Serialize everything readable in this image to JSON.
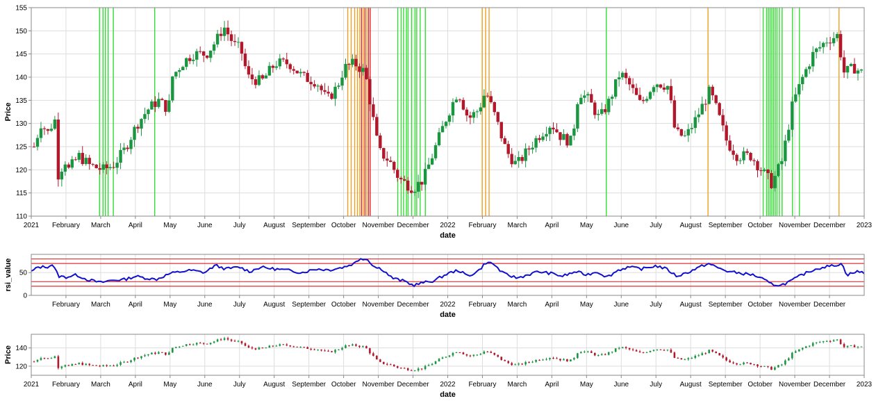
{
  "chart_data": [
    {
      "type": "candlestick",
      "xlabel": "date",
      "ylabel": "Price",
      "x_ticks": [
        "2021",
        "February",
        "March",
        "April",
        "May",
        "June",
        "July",
        "August",
        "September",
        "October",
        "November",
        "December",
        "2022",
        "February",
        "March",
        "April",
        "May",
        "June",
        "July",
        "August",
        "September",
        "October",
        "November",
        "December",
        "2023"
      ],
      "ylim": [
        110,
        155
      ],
      "y_ticks": [
        110,
        115,
        120,
        125,
        130,
        135,
        140,
        145,
        150,
        155
      ],
      "grid": true,
      "colors": {
        "up": "#1a9641",
        "down": "#b2182b",
        "buy_signal": "#33dd33",
        "sell_signal": "#f0a020",
        "sell_signal_strong": "#dd2222"
      },
      "price_path": [
        [
          0,
          125
        ],
        [
          0.2,
          130
        ],
        [
          0.4,
          128
        ],
        [
          0.6,
          131
        ],
        [
          0.7,
          119
        ],
        [
          0.9,
          122
        ],
        [
          1.0,
          120
        ],
        [
          1.3,
          123
        ],
        [
          1.6,
          121
        ],
        [
          2.0,
          120
        ],
        [
          2.3,
          121
        ],
        [
          2.6,
          124
        ],
        [
          3.0,
          130
        ],
        [
          3.3,
          133
        ],
        [
          3.6,
          135
        ],
        [
          3.9,
          133
        ],
        [
          4.0,
          140
        ],
        [
          4.3,
          143
        ],
        [
          4.6,
          145
        ],
        [
          5.0,
          145
        ],
        [
          5.3,
          148
        ],
        [
          5.5,
          151
        ],
        [
          5.8,
          147
        ],
        [
          6.0,
          146
        ],
        [
          6.2,
          140
        ],
        [
          6.6,
          139
        ],
        [
          7.0,
          143
        ],
        [
          7.4,
          143
        ],
        [
          7.8,
          140
        ],
        [
          8.2,
          139
        ],
        [
          8.5,
          135
        ],
        [
          8.8,
          138
        ],
        [
          9.0,
          142
        ],
        [
          9.3,
          143
        ],
        [
          9.6,
          141
        ],
        [
          10.0,
          124
        ],
        [
          10.3,
          122
        ],
        [
          10.6,
          118
        ],
        [
          11.0,
          116
        ],
        [
          11.3,
          118
        ],
        [
          11.6,
          124
        ],
        [
          12.0,
          132
        ],
        [
          12.3,
          137
        ],
        [
          12.6,
          131
        ],
        [
          12.9,
          133
        ],
        [
          13.1,
          137
        ],
        [
          13.4,
          131
        ],
        [
          13.7,
          124
        ],
        [
          14.0,
          121
        ],
        [
          14.3,
          124
        ],
        [
          14.6,
          127
        ],
        [
          15.0,
          130
        ],
        [
          15.3,
          127
        ],
        [
          15.6,
          126
        ],
        [
          15.8,
          137
        ],
        [
          16.1,
          135
        ],
        [
          16.4,
          131
        ],
        [
          16.7,
          135
        ],
        [
          17.0,
          141
        ],
        [
          17.3,
          138
        ],
        [
          17.6,
          134
        ],
        [
          18.0,
          139
        ],
        [
          18.4,
          138
        ],
        [
          18.6,
          128
        ],
        [
          18.9,
          127
        ],
        [
          19.2,
          131
        ],
        [
          19.6,
          137
        ],
        [
          19.8,
          133
        ],
        [
          20.1,
          126
        ],
        [
          20.4,
          123
        ],
        [
          20.8,
          123
        ],
        [
          21.1,
          120
        ],
        [
          21.4,
          117
        ],
        [
          21.7,
          122
        ],
        [
          22.0,
          134
        ],
        [
          22.3,
          140
        ],
        [
          22.6,
          145
        ],
        [
          23.0,
          148
        ],
        [
          23.3,
          149
        ],
        [
          23.5,
          141
        ],
        [
          23.8,
          142
        ],
        [
          24.0,
          141
        ]
      ],
      "signals": [
        {
          "type": "buy",
          "positions": [
            1.9,
            2.0,
            2.07,
            2.15,
            2.3,
            3.5
          ]
        },
        {
          "type": "sell",
          "positions": [
            9.1,
            9.2,
            9.3,
            9.38,
            9.45,
            9.55,
            9.65
          ]
        },
        {
          "type": "sell_strong",
          "positions": [
            9.5,
            9.6,
            9.7,
            9.75
          ]
        },
        {
          "type": "buy",
          "positions": [
            10.55,
            10.65,
            10.72,
            10.8,
            10.85,
            10.95,
            11.05,
            11.1,
            11.2,
            11.35
          ]
        },
        {
          "type": "sell",
          "positions": [
            13.0,
            13.1,
            13.2
          ]
        },
        {
          "type": "buy",
          "positions": [
            16.6
          ]
        },
        {
          "type": "sell",
          "positions": [
            19.55
          ]
        },
        {
          "type": "buy",
          "positions": [
            21.15,
            21.25,
            21.3,
            21.35,
            21.4,
            21.45,
            21.5,
            21.55,
            21.62,
            21.7,
            22.0,
            22.2
          ]
        },
        {
          "type": "sell",
          "positions": [
            23.35
          ]
        }
      ]
    },
    {
      "type": "line",
      "xlabel": "date",
      "ylabel": "rsi_value",
      "x_ticks": [
        "February",
        "March",
        "April",
        "May",
        "June",
        "July",
        "August",
        "September",
        "October",
        "November",
        "December",
        "2022",
        "February",
        "March",
        "April",
        "May",
        "June",
        "July",
        "August",
        "September",
        "October",
        "November",
        "December"
      ],
      "ylim": [
        0,
        90
      ],
      "y_ticks": [
        0,
        50
      ],
      "reference_lines": [
        20,
        30,
        70,
        80
      ],
      "series_color": "#1111cc",
      "rsi_path": [
        [
          0,
          52
        ],
        [
          0.2,
          62
        ],
        [
          0.5,
          63
        ],
        [
          0.6,
          68
        ],
        [
          0.8,
          42
        ],
        [
          1.0,
          40
        ],
        [
          1.3,
          45
        ],
        [
          1.6,
          35
        ],
        [
          2.0,
          28
        ],
        [
          2.3,
          33
        ],
        [
          2.7,
          35
        ],
        [
          3.0,
          42
        ],
        [
          3.3,
          38
        ],
        [
          3.6,
          35
        ],
        [
          4.0,
          48
        ],
        [
          4.3,
          52
        ],
        [
          4.6,
          55
        ],
        [
          5.0,
          50
        ],
        [
          5.3,
          66
        ],
        [
          5.6,
          58
        ],
        [
          6.0,
          62
        ],
        [
          6.3,
          52
        ],
        [
          6.6,
          62
        ],
        [
          7.0,
          58
        ],
        [
          7.4,
          55
        ],
        [
          7.8,
          50
        ],
        [
          8.2,
          58
        ],
        [
          8.6,
          56
        ],
        [
          9.0,
          62
        ],
        [
          9.3,
          70
        ],
        [
          9.5,
          82
        ],
        [
          9.7,
          78
        ],
        [
          9.9,
          62
        ],
        [
          10.1,
          58
        ],
        [
          10.4,
          38
        ],
        [
          10.8,
          30
        ],
        [
          11.0,
          22
        ],
        [
          11.3,
          28
        ],
        [
          11.6,
          32
        ],
        [
          12.0,
          48
        ],
        [
          12.3,
          55
        ],
        [
          12.6,
          42
        ],
        [
          12.9,
          55
        ],
        [
          13.1,
          72
        ],
        [
          13.3,
          70
        ],
        [
          13.6,
          48
        ],
        [
          14.0,
          38
        ],
        [
          14.3,
          45
        ],
        [
          14.6,
          52
        ],
        [
          15.0,
          48
        ],
        [
          15.3,
          42
        ],
        [
          15.7,
          52
        ],
        [
          16.0,
          45
        ],
        [
          16.3,
          52
        ],
        [
          16.6,
          40
        ],
        [
          16.9,
          55
        ],
        [
          17.2,
          62
        ],
        [
          17.6,
          58
        ],
        [
          18.0,
          65
        ],
        [
          18.3,
          58
        ],
        [
          18.6,
          42
        ],
        [
          18.9,
          50
        ],
        [
          19.2,
          60
        ],
        [
          19.5,
          70
        ],
        [
          19.8,
          60
        ],
        [
          20.1,
          52
        ],
        [
          20.5,
          48
        ],
        [
          20.8,
          45
        ],
        [
          21.1,
          35
        ],
        [
          21.3,
          25
        ],
        [
          21.6,
          22
        ],
        [
          21.9,
          32
        ],
        [
          22.2,
          45
        ],
        [
          22.5,
          55
        ],
        [
          22.8,
          62
        ],
        [
          23.1,
          65
        ],
        [
          23.35,
          70
        ],
        [
          23.5,
          45
        ],
        [
          23.8,
          52
        ],
        [
          24.0,
          50
        ]
      ]
    },
    {
      "type": "candlestick",
      "xlabel": "date",
      "ylabel": "Price",
      "x_ticks": [
        "2021",
        "February",
        "March",
        "April",
        "May",
        "June",
        "July",
        "August",
        "September",
        "October",
        "November",
        "December",
        "2022",
        "February",
        "March",
        "April",
        "May",
        "June",
        "July",
        "August",
        "September",
        "October",
        "November",
        "December",
        "2023"
      ],
      "ylim": [
        110,
        155
      ],
      "y_ticks": [
        120,
        140
      ],
      "grid": true
    }
  ]
}
